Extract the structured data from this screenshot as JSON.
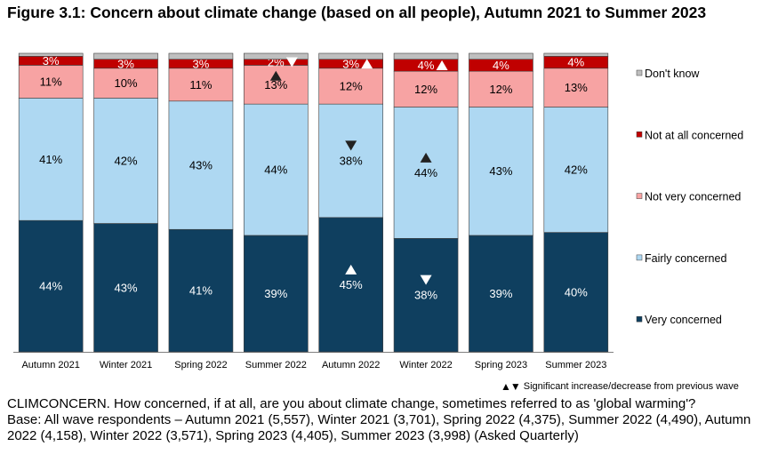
{
  "figure": {
    "title": "Figure 3.1: Concern about climate change (based on all people), Autumn 2021 to Summer 2023"
  },
  "chart_data": {
    "type": "bar",
    "stacked": true,
    "orientation": "vertical",
    "categories": [
      "Autumn 2021",
      "Winter 2021",
      "Spring 2022",
      "Summer 2022",
      "Autumn 2022",
      "Winter 2022",
      "Spring 2023",
      "Summer 2023"
    ],
    "ylim": [
      0,
      100
    ],
    "legend_position": "right",
    "series": [
      {
        "name": "Very concerned",
        "color": "#0f3f5f",
        "label_color": "#ffffff",
        "values": [
          44,
          43,
          41,
          39,
          45,
          38,
          39,
          40
        ],
        "labels": [
          "44%",
          "43%",
          "41%",
          "39%",
          "45%",
          "38%",
          "39%",
          "40%"
        ]
      },
      {
        "name": "Fairly concerned",
        "color": "#aed8f2",
        "label_color": "#000000",
        "values": [
          41,
          42,
          43,
          44,
          38,
          44,
          43,
          42
        ],
        "labels": [
          "41%",
          "42%",
          "43%",
          "44%",
          "38%",
          "44%",
          "43%",
          "42%"
        ]
      },
      {
        "name": "Not very concerned",
        "color": "#f7a3a3",
        "label_color": "#000000",
        "values": [
          11,
          10,
          11,
          13,
          12,
          12,
          12,
          13
        ],
        "labels": [
          "11%",
          "10%",
          "11%",
          "13%",
          "12%",
          "12%",
          "12%",
          "13%"
        ]
      },
      {
        "name": "Not at all concerned",
        "color": "#c00000",
        "label_color": "#ffffff",
        "values": [
          3,
          3,
          3,
          2,
          3,
          4,
          4,
          4
        ],
        "labels": [
          "3%",
          "3%",
          "3%",
          "2%",
          "3%",
          "4%",
          "4%",
          "4%"
        ]
      },
      {
        "name": "Don't know",
        "color": "#bfbfbf",
        "label_color": "#000000",
        "values": [
          1,
          2,
          2,
          2,
          2,
          2,
          2,
          1
        ],
        "labels": []
      }
    ],
    "significance_markers": [
      {
        "series": "Not very concerned",
        "category": "Summer 2022",
        "direction": "up"
      },
      {
        "series": "Not at all concerned",
        "category": "Summer 2022",
        "direction": "down"
      },
      {
        "series": "Fairly concerned",
        "category": "Autumn 2022",
        "direction": "down"
      },
      {
        "series": "Very concerned",
        "category": "Autumn 2022",
        "direction": "up"
      },
      {
        "series": "Not at all concerned",
        "category": "Autumn 2022",
        "direction": "up"
      },
      {
        "series": "Fairly concerned",
        "category": "Winter 2022",
        "direction": "up"
      },
      {
        "series": "Very concerned",
        "category": "Winter 2022",
        "direction": "down"
      },
      {
        "series": "Not at all concerned",
        "category": "Winter 2022",
        "direction": "up"
      }
    ]
  },
  "notes": {
    "significance_legend": "Significant increase/decrease from previous wave",
    "significance_symbols": "▲▼",
    "question": "CLIMCONCERN. How concerned, if at all, are you about climate change, sometimes referred to as 'global warming'?",
    "base": "Base: All wave respondents – Autumn 2021 (5,557), Winter 2021 (3,701), Spring 2022 (4,375), Summer 2022 (4,490), Autumn 2022 (4,158), Winter 2022 (3,571), Spring 2023 (4,405), Summer 2023 (3,998) (Asked Quarterly)"
  }
}
